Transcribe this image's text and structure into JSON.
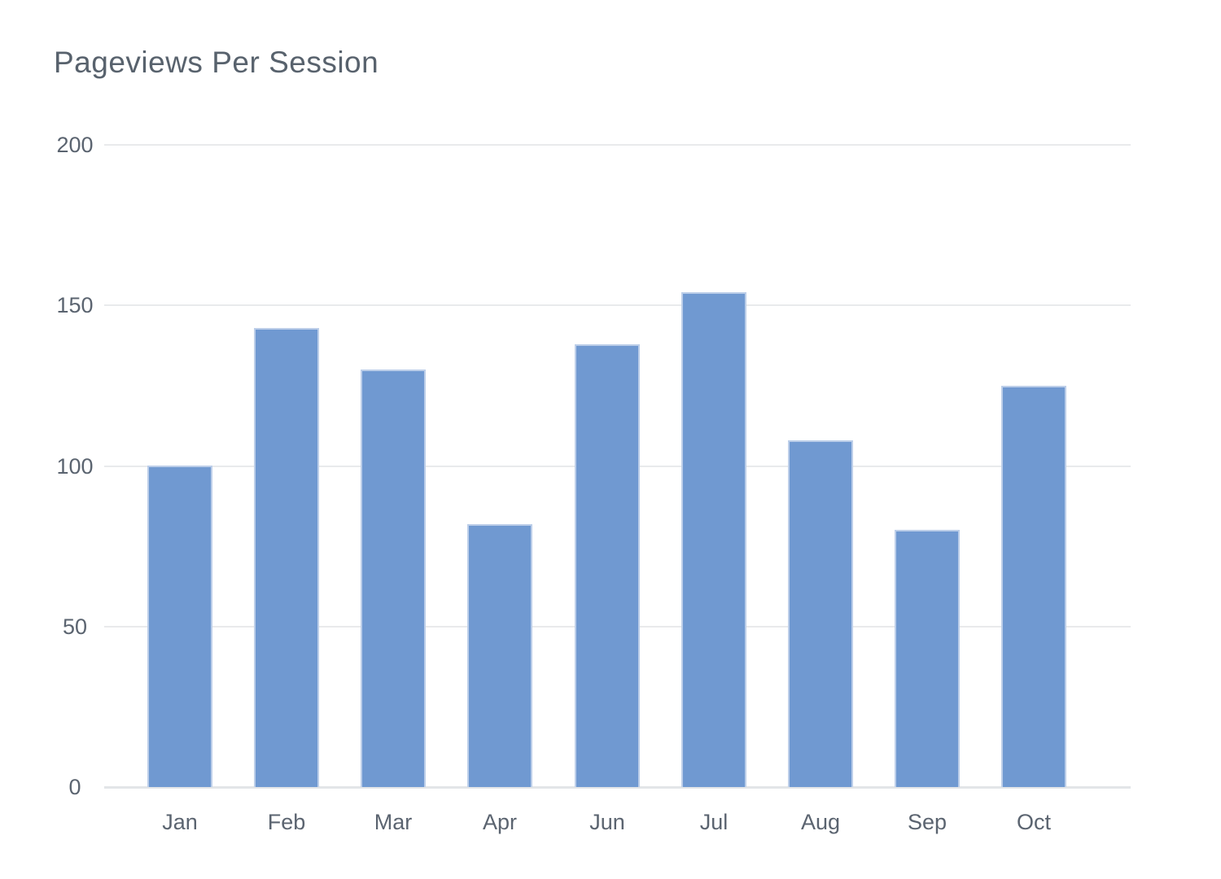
{
  "page": {
    "background_color": "#ffffff"
  },
  "chart_data": {
    "type": "bar",
    "title": "Pageviews Per Session",
    "categories": [
      "Jan",
      "Feb",
      "Mar",
      "Apr",
      "Jun",
      "Jul",
      "Aug",
      "Sep",
      "Oct"
    ],
    "values": [
      100,
      143,
      130,
      82,
      138,
      154,
      108,
      80,
      125
    ],
    "xlabel": "",
    "ylabel": "",
    "ylim": [
      0,
      200
    ],
    "yticks": [
      0,
      50,
      100,
      150,
      200
    ],
    "grid": "horizontal",
    "legend_position": "none",
    "bar_color": "#7099d1",
    "bar_border_color": "#bccee9",
    "gridline_color": "#e9eaec",
    "baseline_color": "#e3e5e8",
    "title_color": "#58626d",
    "axis_label_color": "#5b6470"
  }
}
